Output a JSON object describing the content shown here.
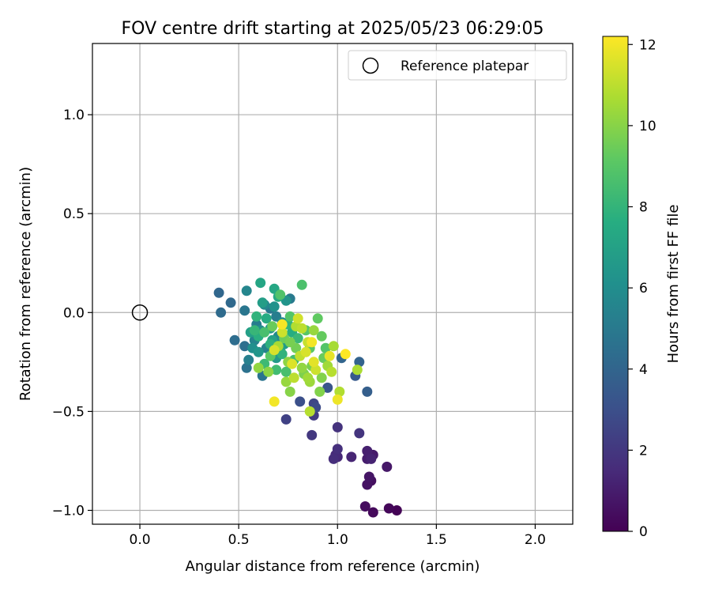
{
  "chart_data": {
    "type": "scatter",
    "title": "FOV centre drift starting at 2025/05/23 06:29:05",
    "xlabel": "Angular distance from reference (arcmin)",
    "ylabel": "Rotation from reference (arcmin)",
    "xlim": [
      -0.24,
      2.19
    ],
    "ylim": [
      -1.07,
      1.36
    ],
    "xticks": [
      0.0,
      0.5,
      1.0,
      1.5,
      2.0
    ],
    "xtick_labels": [
      "0.0",
      "0.5",
      "1.0",
      "1.5",
      "2.0"
    ],
    "yticks": [
      -1.0,
      -0.5,
      0.0,
      0.5,
      1.0
    ],
    "ytick_labels": [
      "−1.0",
      "−0.5",
      "0.0",
      "0.5",
      "1.0"
    ],
    "grid": true,
    "legend": {
      "placement": "top-right",
      "entries": [
        "Reference platepar"
      ]
    },
    "reference_point": {
      "x": 0.0,
      "y": 0.0,
      "marker": "open-circle"
    },
    "colorbar": {
      "label": "Hours from first FF file",
      "colormap": "viridis",
      "range": [
        0,
        12.2
      ],
      "ticks": [
        0,
        2,
        4,
        6,
        8,
        10,
        12
      ],
      "tick_labels": [
        "0",
        "2",
        "4",
        "6",
        "8",
        "10",
        "12"
      ]
    },
    "points": [
      [
        1.3,
        -1.0,
        0.1
      ],
      [
        1.26,
        -0.99,
        0.2
      ],
      [
        1.18,
        -1.01,
        0.3
      ],
      [
        1.14,
        -0.98,
        0.4
      ],
      [
        1.17,
        -0.85,
        0.5
      ],
      [
        1.15,
        -0.87,
        0.6
      ],
      [
        1.16,
        -0.83,
        0.7
      ],
      [
        1.25,
        -0.78,
        0.8
      ],
      [
        1.18,
        -0.72,
        0.9
      ],
      [
        1.15,
        -0.74,
        1.0
      ],
      [
        1.15,
        -0.7,
        1.1
      ],
      [
        1.17,
        -0.74,
        1.2
      ],
      [
        1.07,
        -0.73,
        1.3
      ],
      [
        1.0,
        -0.73,
        1.4
      ],
      [
        0.99,
        -0.72,
        1.5
      ],
      [
        0.98,
        -0.74,
        1.6
      ],
      [
        1.0,
        -0.69,
        1.7
      ],
      [
        1.0,
        -0.58,
        1.8
      ],
      [
        1.11,
        -0.61,
        1.9
      ],
      [
        0.87,
        -0.62,
        2.0
      ],
      [
        0.88,
        -0.52,
        2.2
      ],
      [
        0.74,
        -0.54,
        2.4
      ],
      [
        0.88,
        -0.46,
        2.6
      ],
      [
        0.89,
        -0.48,
        2.8
      ],
      [
        0.81,
        -0.45,
        3.0
      ],
      [
        0.95,
        -0.38,
        3.3
      ],
      [
        1.09,
        -0.32,
        3.5
      ],
      [
        1.15,
        -0.4,
        3.7
      ],
      [
        1.11,
        -0.25,
        3.9
      ],
      [
        1.02,
        -0.23,
        4.0
      ],
      [
        0.4,
        0.1,
        4.1
      ],
      [
        0.46,
        0.05,
        4.2
      ],
      [
        0.41,
        0.0,
        4.3
      ],
      [
        0.48,
        -0.14,
        4.4
      ],
      [
        0.53,
        -0.17,
        4.5
      ],
      [
        0.54,
        -0.28,
        4.6
      ],
      [
        0.62,
        -0.32,
        4.7
      ],
      [
        0.53,
        0.01,
        4.8
      ],
      [
        0.66,
        0.02,
        4.9
      ],
      [
        0.76,
        0.07,
        5.0
      ],
      [
        0.59,
        -0.06,
        5.1
      ],
      [
        0.69,
        -0.02,
        5.2
      ],
      [
        0.55,
        -0.24,
        5.3
      ],
      [
        0.64,
        -0.18,
        5.4
      ],
      [
        0.58,
        -0.14,
        5.5
      ],
      [
        0.54,
        0.11,
        5.6
      ],
      [
        0.63,
        0.04,
        5.7
      ],
      [
        0.7,
        -0.12,
        5.8
      ],
      [
        0.72,
        -0.05,
        5.9
      ],
      [
        0.61,
        -0.09,
        6.0
      ],
      [
        0.57,
        -0.18,
        6.1
      ],
      [
        0.68,
        0.03,
        6.2
      ],
      [
        0.74,
        0.06,
        6.3
      ],
      [
        0.6,
        -0.2,
        6.4
      ],
      [
        0.66,
        -0.08,
        6.5
      ],
      [
        0.69,
        -0.23,
        6.6
      ],
      [
        0.73,
        -0.16,
        6.7
      ],
      [
        0.62,
        0.05,
        6.8
      ],
      [
        0.56,
        -0.1,
        6.9
      ],
      [
        0.67,
        -0.14,
        7.0
      ],
      [
        0.71,
        -0.19,
        7.1
      ],
      [
        0.61,
        0.15,
        7.2
      ],
      [
        0.68,
        0.12,
        7.3
      ],
      [
        0.7,
        0.08,
        7.4
      ],
      [
        0.64,
        -0.03,
        7.5
      ],
      [
        0.77,
        -0.1,
        7.6
      ],
      [
        0.6,
        -0.12,
        7.7
      ],
      [
        0.66,
        -0.16,
        7.8
      ],
      [
        0.72,
        -0.21,
        7.9
      ],
      [
        0.75,
        -0.06,
        8.0
      ],
      [
        0.58,
        -0.09,
        8.1
      ],
      [
        0.8,
        -0.13,
        8.2
      ],
      [
        0.63,
        -0.26,
        8.3
      ],
      [
        0.69,
        -0.29,
        8.4
      ],
      [
        0.78,
        -0.24,
        8.5
      ],
      [
        0.74,
        -0.3,
        8.6
      ],
      [
        0.82,
        0.14,
        8.7
      ],
      [
        0.71,
        0.09,
        8.8
      ],
      [
        0.76,
        -0.02,
        8.9
      ],
      [
        0.84,
        -0.09,
        9.0
      ],
      [
        0.86,
        -0.18,
        9.1
      ],
      [
        0.9,
        -0.03,
        9.2
      ],
      [
        0.92,
        -0.12,
        9.3
      ],
      [
        0.67,
        -0.07,
        9.4
      ],
      [
        0.73,
        -0.13,
        9.5
      ],
      [
        0.79,
        -0.18,
        9.6
      ],
      [
        0.87,
        -0.27,
        9.7
      ],
      [
        0.83,
        -0.31,
        9.8
      ],
      [
        0.91,
        -0.4,
        9.9
      ],
      [
        0.76,
        -0.4,
        10.0
      ],
      [
        0.65,
        -0.3,
        10.1
      ],
      [
        0.6,
        -0.28,
        10.2
      ],
      [
        0.74,
        -0.35,
        10.3
      ],
      [
        0.86,
        -0.35,
        10.4
      ],
      [
        0.95,
        -0.27,
        10.5
      ],
      [
        0.98,
        -0.17,
        10.6
      ],
      [
        1.1,
        -0.29,
        10.7
      ],
      [
        1.01,
        -0.4,
        10.8
      ],
      [
        0.86,
        -0.5,
        10.9
      ],
      [
        0.78,
        -0.33,
        11.0
      ],
      [
        0.81,
        -0.22,
        11.1
      ],
      [
        0.85,
        -0.15,
        11.2
      ],
      [
        0.72,
        -0.1,
        11.3
      ],
      [
        0.8,
        -0.03,
        11.4
      ],
      [
        0.68,
        -0.19,
        11.5
      ],
      [
        0.77,
        -0.26,
        11.6
      ],
      [
        0.88,
        -0.25,
        11.7
      ],
      [
        0.96,
        -0.22,
        11.8
      ],
      [
        1.0,
        -0.44,
        11.9
      ],
      [
        0.68,
        -0.45,
        12.0
      ],
      [
        0.72,
        -0.06,
        12.1
      ],
      [
        1.04,
        -0.21,
        12.2
      ],
      [
        0.82,
        -0.08,
        11.0
      ],
      [
        0.88,
        -0.09,
        10.3
      ],
      [
        0.93,
        -0.23,
        9.4
      ],
      [
        0.79,
        -0.07,
        10.8
      ],
      [
        0.84,
        -0.2,
        11.5
      ],
      [
        0.75,
        -0.25,
        10.1
      ],
      [
        0.7,
        -0.17,
        10.6
      ],
      [
        0.92,
        -0.33,
        9.9
      ],
      [
        0.87,
        -0.15,
        12.0
      ],
      [
        0.97,
        -0.3,
        10.9
      ],
      [
        0.63,
        -0.1,
        8.6
      ],
      [
        0.59,
        -0.02,
        7.9
      ],
      [
        0.82,
        -0.28,
        10.2
      ],
      [
        0.76,
        -0.15,
        9.7
      ],
      [
        0.89,
        -0.29,
        11.3
      ],
      [
        0.94,
        -0.18,
        8.9
      ],
      [
        0.66,
        -0.22,
        9.1
      ],
      [
        0.85,
        -0.33,
        10.5
      ]
    ]
  }
}
